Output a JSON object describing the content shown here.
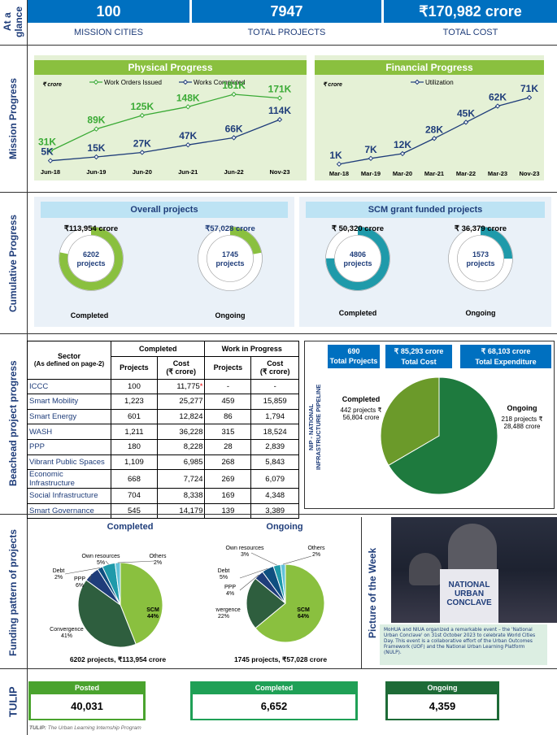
{
  "section_labels": {
    "glance": "At a glance",
    "mission": "Mission Progress",
    "cumulative": "Cumulative Progress",
    "beachead": "Beachead project progress",
    "funding": "Funding pattern of projects",
    "tulip": "TULIP",
    "picture": "Picture of the Week"
  },
  "glance": [
    {
      "value": "100",
      "label": "MISSION CITIES"
    },
    {
      "value": "7947",
      "label": "TOTAL PROJECTS"
    },
    {
      "value": "₹170,982 crore",
      "label": "TOTAL COST"
    }
  ],
  "physical": {
    "title": "Physical Progress",
    "unit": "₹ crore",
    "legend": [
      "Work Orders Issued",
      "Works Completed"
    ],
    "x": [
      "Jun-18",
      "Jun-19",
      "Jun-20",
      "Jun-21",
      "Jun-22",
      "Nov-23"
    ],
    "series": [
      {
        "name": "Work Orders Issued",
        "color": "#3aaa35",
        "values": [
          31,
          89,
          125,
          148,
          181,
          171
        ],
        "labels": [
          "31K",
          "89K",
          "125K",
          "148K",
          "181K",
          "171K"
        ]
      },
      {
        "name": "Works Completed",
        "color": "#1f3d7a",
        "values": [
          5,
          15,
          27,
          47,
          66,
          114
        ],
        "labels": [
          "5K",
          "15K",
          "27K",
          "47K",
          "66K",
          "114K"
        ]
      }
    ]
  },
  "financial": {
    "title": "Financial Progress",
    "unit": "₹ crore",
    "legend": [
      "Utilization"
    ],
    "x": [
      "Mar-18",
      "Mar-19",
      "Mar-20",
      "Mar-21",
      "Mar-22",
      "Mar-23",
      "Nov-23"
    ],
    "series": [
      {
        "name": "Utilization",
        "color": "#1f3d7a",
        "values": [
          1,
          7,
          12,
          28,
          45,
          62,
          71
        ],
        "labels": [
          "1K",
          "7K",
          "12K",
          "28K",
          "45K",
          "62K",
          "71K"
        ]
      }
    ]
  },
  "cumulative": {
    "overall_title": "Overall projects",
    "scm_title": "SCM grant funded projects",
    "donuts": [
      {
        "amount": "₹113,954 crore",
        "center1": "6202",
        "center2": "projects",
        "caption": "Completed",
        "fraction": 0.78,
        "color": "#8ac03f"
      },
      {
        "amount": "₹57,028 crore",
        "center1": "1745",
        "center2": "projects",
        "caption": "Ongoing",
        "fraction": 0.22,
        "color": "#8ac03f"
      },
      {
        "amount": "₹ 50,320 crore",
        "center1": "4806",
        "center2": "projects",
        "caption": "Completed",
        "fraction": 0.75,
        "color": "#1f9aaa"
      },
      {
        "amount": "₹ 36,379 crore",
        "center1": "1573",
        "center2": "projects",
        "caption": "Ongoing",
        "fraction": 0.25,
        "color": "#1f9aaa"
      }
    ]
  },
  "beachead": {
    "h_sector": "Sector",
    "h_sector_sub": "(As defined on page-2)",
    "h_completed": "Completed",
    "h_wip": "Work in Progress",
    "h_projects": "Projects",
    "h_cost": "Cost",
    "h_cost_unit": "(₹ crore)",
    "rows": [
      [
        "ICCC",
        "100",
        "11,775",
        "-",
        "-"
      ],
      [
        "Smart Mobility",
        "1,223",
        "25,277",
        "459",
        "15,859"
      ],
      [
        "Smart Energy",
        "601",
        "12,824",
        "86",
        "1,794"
      ],
      [
        "WASH",
        "1,211",
        "36,228",
        "315",
        "18,524"
      ],
      [
        "PPP",
        "180",
        "8,228",
        "28",
        "2,839"
      ],
      [
        "Vibrant Public Spaces",
        "1,109",
        "6,985",
        "268",
        "5,843"
      ],
      [
        "Economic Infrastructure",
        "668",
        "7,724",
        "269",
        "6,079"
      ],
      [
        "Social Infrastructure",
        "704",
        "8,338",
        "169",
        "4,348"
      ],
      [
        "Smart Governance",
        "545",
        "14,179",
        "139",
        "3,389"
      ]
    ],
    "iccc_mark": "*"
  },
  "nip": {
    "side_label_1": "NIP - NATIONAL",
    "side_label_2": "INFRASTRUCTURE PIPELINE",
    "boxes": [
      {
        "v": "690",
        "l": "Total Projects"
      },
      {
        "v": "₹ 85,293 crore",
        "l": "Total Cost"
      },
      {
        "v": "₹ 68,103 crore",
        "l": "Total Expenditure"
      }
    ],
    "completed_title": "Completed",
    "completed_l1": "442 projects ₹",
    "completed_l2": "56,804 crore",
    "ongoing_title": "Ongoing",
    "ongoing_l1": "218 projects ₹",
    "ongoing_l2": "28,488 crore",
    "pie": [
      {
        "name": "Completed",
        "value": 56804,
        "color": "#1e7a3e"
      },
      {
        "name": "Ongoing",
        "value": 28488,
        "color": "#6b9a2a"
      }
    ]
  },
  "funding": {
    "completed_title": "Completed",
    "ongoing_title": "Ongoing",
    "completed_footer": "6202 projects,  ₹113,954 crore",
    "ongoing_footer": "1745 projects, ₹57,028 crore",
    "completed_slices": [
      {
        "name": "SCM",
        "pct": "44%",
        "value": 44,
        "color": "#8ac03f"
      },
      {
        "name": "Convergence",
        "pct": "41%",
        "value": 41,
        "color": "#2e5e3e"
      },
      {
        "name": "PPP",
        "pct": "6%",
        "value": 6,
        "color": "#1f3d7a"
      },
      {
        "name": "Debt",
        "pct": "2%",
        "value": 2,
        "color": "#0f4f80"
      },
      {
        "name": "Own resources",
        "pct": "5%",
        "value": 5,
        "color": "#1f9aaa"
      },
      {
        "name": "Others",
        "pct": "2%",
        "value": 2,
        "color": "#63c3d9"
      }
    ],
    "ongoing_slices": [
      {
        "name": "SCM",
        "pct": "64%",
        "value": 64,
        "color": "#8ac03f"
      },
      {
        "name": "Convergence",
        "pct": "22%",
        "value": 22,
        "color": "#2e5e3e"
      },
      {
        "name": "PPP",
        "pct": "4%",
        "value": 4,
        "color": "#1f3d7a"
      },
      {
        "name": "Debt",
        "pct": "5%",
        "value": 5,
        "color": "#0f4f80"
      },
      {
        "name": "Own resources",
        "pct": "3%",
        "value": 3,
        "color": "#1f9aaa"
      },
      {
        "name": "Others",
        "pct": "2%",
        "value": 2,
        "color": "#63c3d9"
      }
    ]
  },
  "picture": {
    "banner_l1": "NATIONAL",
    "banner_l2": "URBAN",
    "banner_l3": "CONCLAVE",
    "caption": "MoHUA and NIUA organized a remarkable event – the 'National Urban Conclave' on 31st October 2023 to celebrate World Cities  Day. This event is a collaborative effort of the Urban Outcomes Framework (UOF) and the National Urban Learning Platform (NULP)."
  },
  "tulip": {
    "boxes": [
      {
        "label": "Posted",
        "value": "40,031",
        "color": "#4aa32e"
      },
      {
        "label": "Completed",
        "value": "6,652",
        "color": "#1fa056"
      },
      {
        "label": "Ongoing",
        "value": "4,359",
        "color": "#1e6b37"
      }
    ],
    "footnote_bold": "TULIP:",
    "footnote": " The Urban Learning Internship Program"
  }
}
